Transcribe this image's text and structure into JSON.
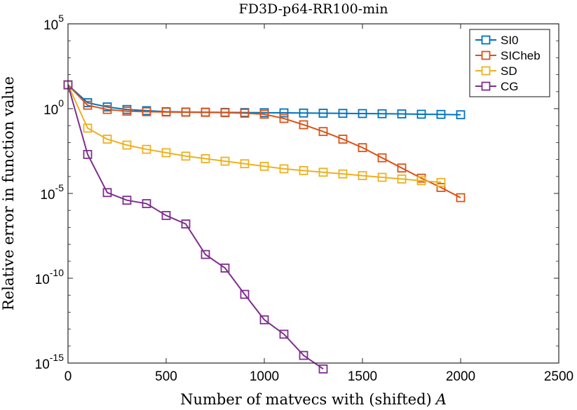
{
  "chart_data": {
    "type": "line",
    "title": "FD3D-p64-RR100-min",
    "xlabel": "Number of matvecs with (shifted)",
    "xlabel_var": "A",
    "ylabel": "Relative error in function value",
    "xlim": [
      0,
      2500
    ],
    "ylim_log10": [
      -15,
      5
    ],
    "yscale": "log",
    "x_ticks": [
      0,
      500,
      1000,
      1500,
      2000,
      2500
    ],
    "y_ticks": [
      {
        "base": "10",
        "exp": "-15",
        "log10": -15
      },
      {
        "base": "10",
        "exp": "-10",
        "log10": -10
      },
      {
        "base": "10",
        "exp": "-5",
        "log10": -5
      },
      {
        "base": "10",
        "exp": "0",
        "log10": 0
      },
      {
        "base": "10",
        "exp": "5",
        "log10": 5
      }
    ],
    "legend_position": "top-right",
    "series": [
      {
        "name": "SI0",
        "color": "#0072BD",
        "x": [
          0,
          100,
          200,
          300,
          400,
          500,
          600,
          700,
          800,
          900,
          1000,
          1100,
          1200,
          1300,
          1400,
          1500,
          1600,
          1700,
          1800,
          1900,
          2000
        ],
        "log10_y": [
          1.4,
          0.35,
          0.1,
          -0.05,
          -0.12,
          -0.18,
          -0.2,
          -0.21,
          -0.22,
          -0.23,
          -0.24,
          -0.25,
          -0.26,
          -0.27,
          -0.28,
          -0.29,
          -0.3,
          -0.31,
          -0.33,
          -0.34,
          -0.36
        ]
      },
      {
        "name": "SICheb",
        "color": "#D95319",
        "x": [
          0,
          100,
          200,
          300,
          400,
          500,
          600,
          700,
          800,
          900,
          1000,
          1100,
          1200,
          1300,
          1400,
          1500,
          1600,
          1700,
          1800,
          1900,
          2000
        ],
        "log10_y": [
          1.4,
          0.2,
          -0.05,
          -0.15,
          -0.18,
          -0.2,
          -0.21,
          -0.22,
          -0.24,
          -0.27,
          -0.33,
          -0.58,
          -0.95,
          -1.35,
          -1.8,
          -2.3,
          -2.9,
          -3.5,
          -4.1,
          -4.65,
          -5.25
        ]
      },
      {
        "name": "SD",
        "color": "#EDB120",
        "x": [
          0,
          100,
          200,
          300,
          400,
          500,
          600,
          700,
          800,
          900,
          1000,
          1100,
          1200,
          1300,
          1400,
          1500,
          1600,
          1700,
          1800,
          1900
        ],
        "log10_y": [
          1.4,
          -1.15,
          -1.8,
          -2.15,
          -2.4,
          -2.6,
          -2.8,
          -2.95,
          -3.1,
          -3.25,
          -3.4,
          -3.55,
          -3.65,
          -3.75,
          -3.85,
          -3.95,
          -4.05,
          -4.15,
          -4.25,
          -4.35
        ]
      },
      {
        "name": "CG",
        "color": "#7E2F8E",
        "x": [
          0,
          100,
          200,
          300,
          400,
          500,
          600,
          700,
          800,
          900,
          1000,
          1100,
          1200,
          1300
        ],
        "log10_y": [
          1.4,
          -2.7,
          -4.95,
          -5.4,
          -5.6,
          -6.3,
          -6.8,
          -8.6,
          -9.4,
          -10.95,
          -12.45,
          -13.3,
          -14.55,
          -15.35
        ]
      }
    ]
  }
}
